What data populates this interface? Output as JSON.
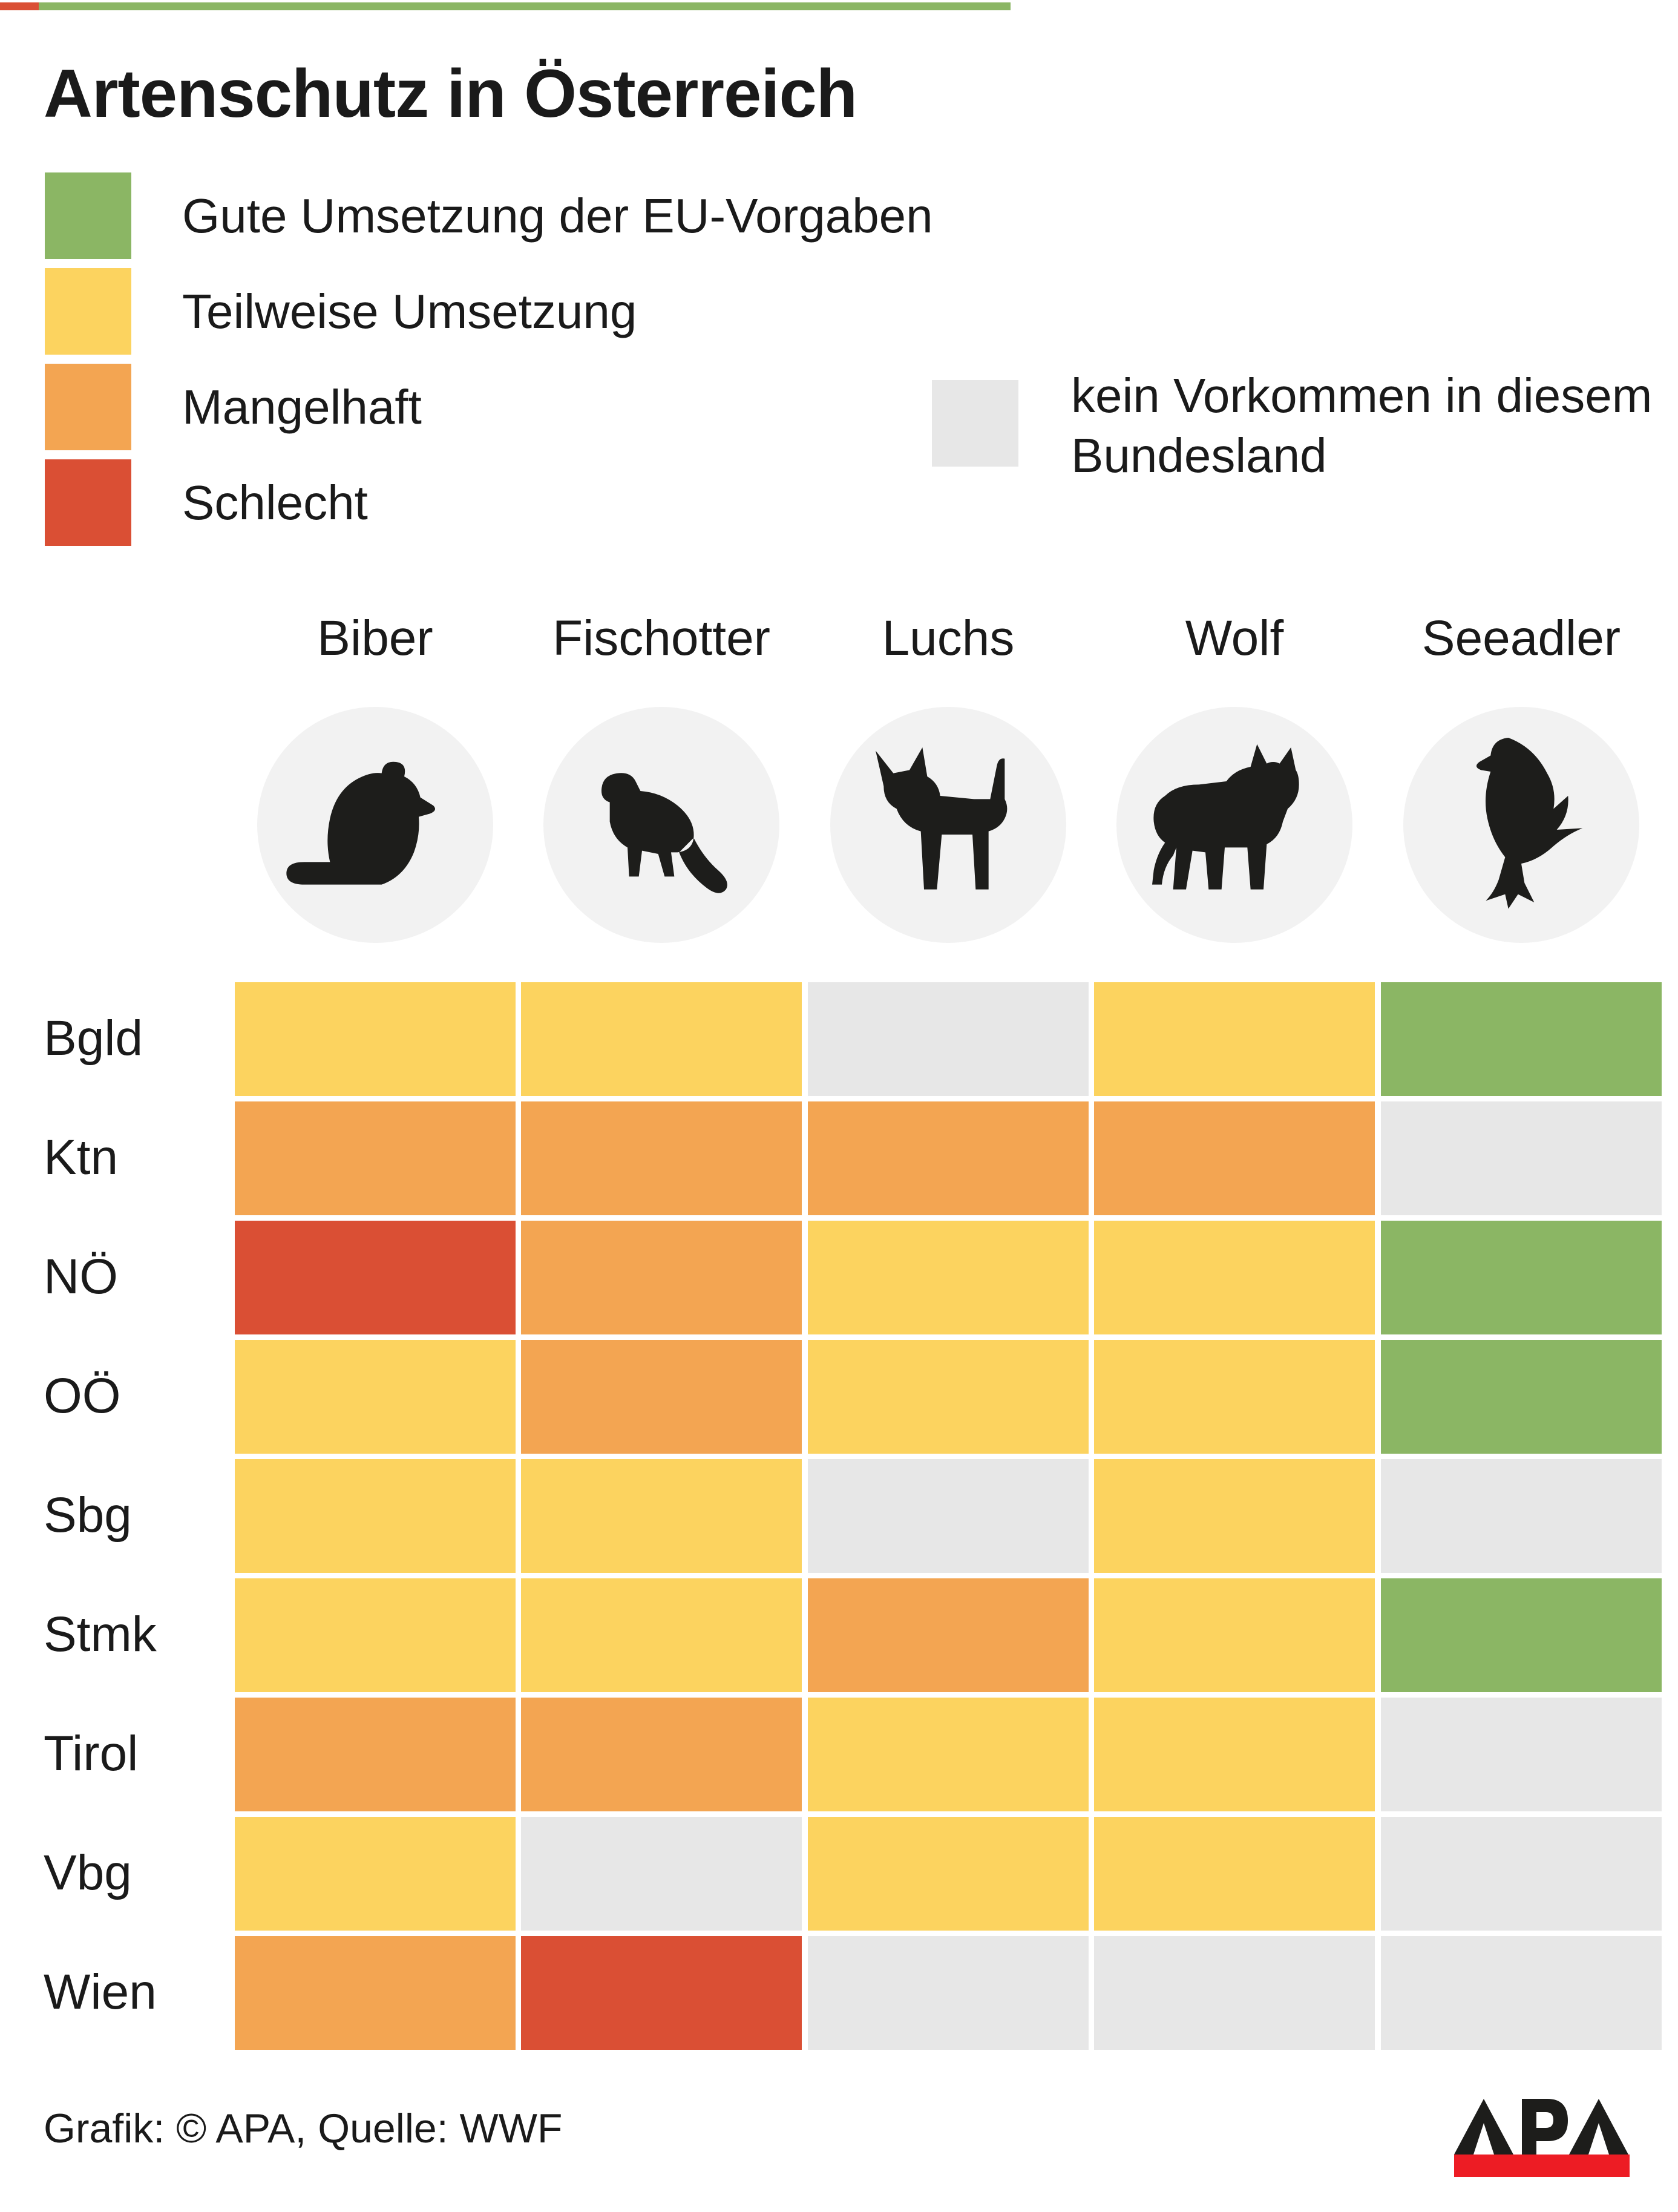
{
  "title": "Artenschutz in Österreich",
  "decor": {
    "top_strip_red": "#DA4F34",
    "top_strip_green": "#8BB664"
  },
  "legend": {
    "items": [
      {
        "key": "good",
        "label": "Gute Umsetzung der EU-Vorgaben",
        "color": "#8BB664"
      },
      {
        "key": "partial",
        "label": "Teilweise Umsetzung",
        "color": "#FCD35F"
      },
      {
        "key": "deficient",
        "label": "Mangelhaft",
        "color": "#F3A552"
      },
      {
        "key": "bad",
        "label": "Schlecht",
        "color": "#DA4F34"
      }
    ],
    "no_occurrence": {
      "key": "none",
      "label": "kein Vorkommen in diesem Bundesland",
      "color": "#E7E7E7"
    }
  },
  "columns": [
    {
      "label": "Biber",
      "icon": "beaver-icon"
    },
    {
      "label": "Fischotter",
      "icon": "otter-icon"
    },
    {
      "label": "Luchs",
      "icon": "lynx-icon"
    },
    {
      "label": "Wolf",
      "icon": "wolf-icon"
    },
    {
      "label": "Seeadler",
      "icon": "eagle-icon"
    }
  ],
  "rows": [
    "Bgld",
    "Ktn",
    "NÖ",
    "OÖ",
    "Sbg",
    "Stmk",
    "Tirol",
    "Vbg",
    "Wien"
  ],
  "matrix": [
    [
      "partial",
      "partial",
      "none",
      "partial",
      "good"
    ],
    [
      "deficient",
      "deficient",
      "deficient",
      "deficient",
      "none"
    ],
    [
      "bad",
      "deficient",
      "partial",
      "partial",
      "good"
    ],
    [
      "partial",
      "deficient",
      "partial",
      "partial",
      "good"
    ],
    [
      "partial",
      "partial",
      "none",
      "partial",
      "none"
    ],
    [
      "partial",
      "partial",
      "deficient",
      "partial",
      "good"
    ],
    [
      "deficient",
      "deficient",
      "partial",
      "partial",
      "none"
    ],
    [
      "partial",
      "none",
      "partial",
      "partial",
      "none"
    ],
    [
      "deficient",
      "bad",
      "none",
      "none",
      "none"
    ]
  ],
  "footer": {
    "credit": "Grafik: © APA, Quelle: WWF",
    "logo_text": "APA",
    "logo_red": "#ED1C24",
    "logo_black": "#1D1D1B"
  },
  "chart_data": {
    "type": "heatmap",
    "title": "Artenschutz in Österreich",
    "x": [
      "Biber",
      "Fischotter",
      "Luchs",
      "Wolf",
      "Seeadler"
    ],
    "y": [
      "Bgld",
      "Ktn",
      "NÖ",
      "OÖ",
      "Sbg",
      "Stmk",
      "Tirol",
      "Vbg",
      "Wien"
    ],
    "categories": {
      "good": "Gute Umsetzung der EU-Vorgaben",
      "partial": "Teilweise Umsetzung",
      "deficient": "Mangelhaft",
      "bad": "Schlecht",
      "none": "kein Vorkommen in diesem Bundesland"
    },
    "values": [
      [
        "partial",
        "partial",
        "none",
        "partial",
        "good"
      ],
      [
        "deficient",
        "deficient",
        "deficient",
        "deficient",
        "none"
      ],
      [
        "bad",
        "deficient",
        "partial",
        "partial",
        "good"
      ],
      [
        "partial",
        "deficient",
        "partial",
        "partial",
        "good"
      ],
      [
        "partial",
        "partial",
        "none",
        "partial",
        "none"
      ],
      [
        "partial",
        "partial",
        "deficient",
        "partial",
        "good"
      ],
      [
        "deficient",
        "deficient",
        "partial",
        "partial",
        "none"
      ],
      [
        "partial",
        "none",
        "partial",
        "partial",
        "none"
      ],
      [
        "deficient",
        "bad",
        "none",
        "none",
        "none"
      ]
    ],
    "legend_position": "top-left",
    "grid": false,
    "source": "Grafik: © APA, Quelle: WWF"
  }
}
